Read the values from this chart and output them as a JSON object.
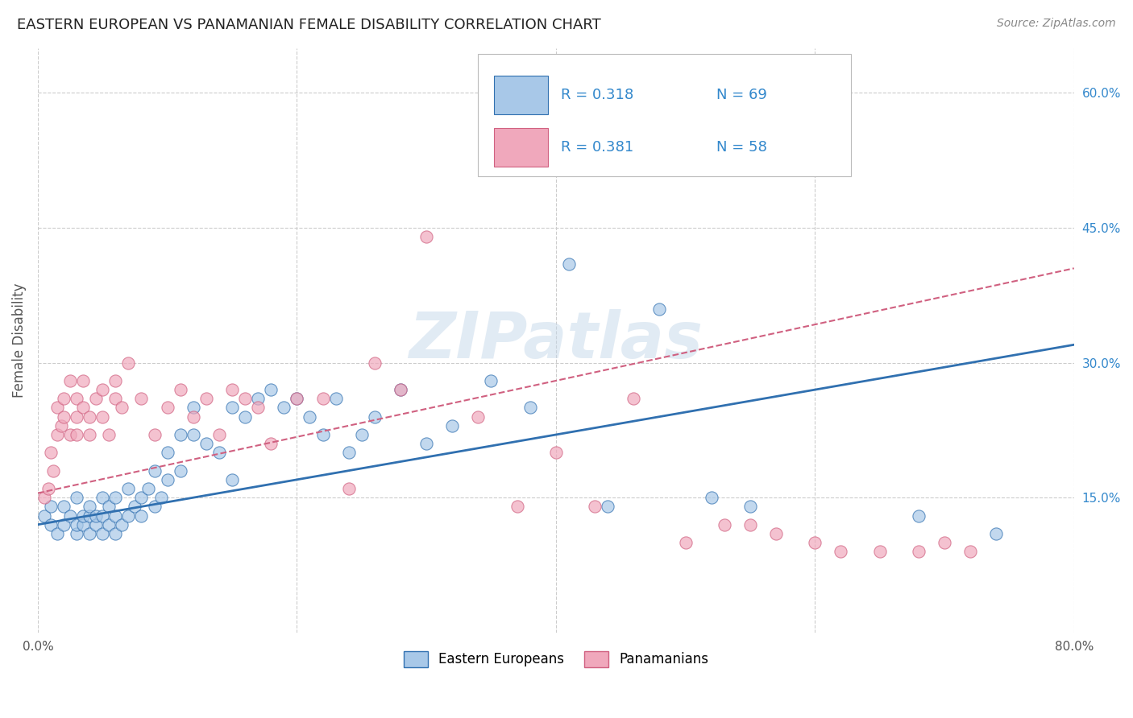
{
  "title": "EASTERN EUROPEAN VS PANAMANIAN FEMALE DISABILITY CORRELATION CHART",
  "source": "Source: ZipAtlas.com",
  "ylabel": "Female Disability",
  "xlim": [
    0.0,
    0.8
  ],
  "ylim": [
    0.0,
    0.65
  ],
  "xtick_positions": [
    0.0,
    0.2,
    0.4,
    0.6,
    0.8
  ],
  "xticklabels": [
    "0.0%",
    "",
    "",
    "",
    "80.0%"
  ],
  "ytick_right_positions": [
    0.15,
    0.3,
    0.45,
    0.6
  ],
  "ytick_right_labels": [
    "15.0%",
    "30.0%",
    "45.0%",
    "60.0%"
  ],
  "watermark": "ZIPatlas",
  "legend_labels": [
    "Eastern Europeans",
    "Panamanians"
  ],
  "R_blue": 0.318,
  "N_blue": 69,
  "R_pink": 0.381,
  "N_pink": 58,
  "color_blue": "#a8c8e8",
  "color_pink": "#f0a8bc",
  "color_line_blue": "#3070b0",
  "color_line_pink": "#d06080",
  "color_text_blue": "#3388cc",
  "color_grid": "#cccccc",
  "background_color": "#ffffff",
  "blue_scatter_x": [
    0.005,
    0.01,
    0.01,
    0.015,
    0.02,
    0.02,
    0.025,
    0.03,
    0.03,
    0.03,
    0.035,
    0.035,
    0.04,
    0.04,
    0.04,
    0.045,
    0.045,
    0.05,
    0.05,
    0.05,
    0.055,
    0.055,
    0.06,
    0.06,
    0.06,
    0.065,
    0.07,
    0.07,
    0.075,
    0.08,
    0.08,
    0.085,
    0.09,
    0.09,
    0.095,
    0.1,
    0.1,
    0.11,
    0.11,
    0.12,
    0.12,
    0.13,
    0.14,
    0.15,
    0.15,
    0.16,
    0.17,
    0.18,
    0.19,
    0.2,
    0.21,
    0.22,
    0.23,
    0.24,
    0.25,
    0.26,
    0.28,
    0.3,
    0.32,
    0.35,
    0.38,
    0.41,
    0.44,
    0.48,
    0.52,
    0.55,
    0.62,
    0.68,
    0.74
  ],
  "blue_scatter_y": [
    0.13,
    0.12,
    0.14,
    0.11,
    0.12,
    0.14,
    0.13,
    0.11,
    0.12,
    0.15,
    0.12,
    0.13,
    0.11,
    0.13,
    0.14,
    0.12,
    0.13,
    0.11,
    0.13,
    0.15,
    0.12,
    0.14,
    0.11,
    0.13,
    0.15,
    0.12,
    0.13,
    0.16,
    0.14,
    0.13,
    0.15,
    0.16,
    0.14,
    0.18,
    0.15,
    0.17,
    0.2,
    0.22,
    0.18,
    0.22,
    0.25,
    0.21,
    0.2,
    0.25,
    0.17,
    0.24,
    0.26,
    0.27,
    0.25,
    0.26,
    0.24,
    0.22,
    0.26,
    0.2,
    0.22,
    0.24,
    0.27,
    0.21,
    0.23,
    0.28,
    0.25,
    0.41,
    0.14,
    0.36,
    0.15,
    0.14,
    0.52,
    0.13,
    0.11
  ],
  "pink_scatter_x": [
    0.005,
    0.008,
    0.01,
    0.012,
    0.015,
    0.015,
    0.018,
    0.02,
    0.02,
    0.025,
    0.025,
    0.03,
    0.03,
    0.03,
    0.035,
    0.035,
    0.04,
    0.04,
    0.045,
    0.05,
    0.05,
    0.055,
    0.06,
    0.06,
    0.065,
    0.07,
    0.08,
    0.09,
    0.1,
    0.11,
    0.12,
    0.13,
    0.14,
    0.15,
    0.16,
    0.17,
    0.18,
    0.2,
    0.22,
    0.24,
    0.26,
    0.28,
    0.3,
    0.34,
    0.37,
    0.4,
    0.43,
    0.46,
    0.5,
    0.53,
    0.55,
    0.57,
    0.6,
    0.62,
    0.65,
    0.68,
    0.7,
    0.72
  ],
  "pink_scatter_y": [
    0.15,
    0.16,
    0.2,
    0.18,
    0.22,
    0.25,
    0.23,
    0.24,
    0.26,
    0.22,
    0.28,
    0.24,
    0.26,
    0.22,
    0.25,
    0.28,
    0.24,
    0.22,
    0.26,
    0.24,
    0.27,
    0.22,
    0.26,
    0.28,
    0.25,
    0.3,
    0.26,
    0.22,
    0.25,
    0.27,
    0.24,
    0.26,
    0.22,
    0.27,
    0.26,
    0.25,
    0.21,
    0.26,
    0.26,
    0.16,
    0.3,
    0.27,
    0.44,
    0.24,
    0.14,
    0.2,
    0.14,
    0.26,
    0.1,
    0.12,
    0.12,
    0.11,
    0.1,
    0.09,
    0.09,
    0.09,
    0.1,
    0.09
  ],
  "blue_line_x0": 0.0,
  "blue_line_y0": 0.12,
  "blue_line_x1": 0.8,
  "blue_line_y1": 0.32,
  "pink_line_x0": 0.0,
  "pink_line_y0": 0.155,
  "pink_line_x1": 0.8,
  "pink_line_y1": 0.405
}
